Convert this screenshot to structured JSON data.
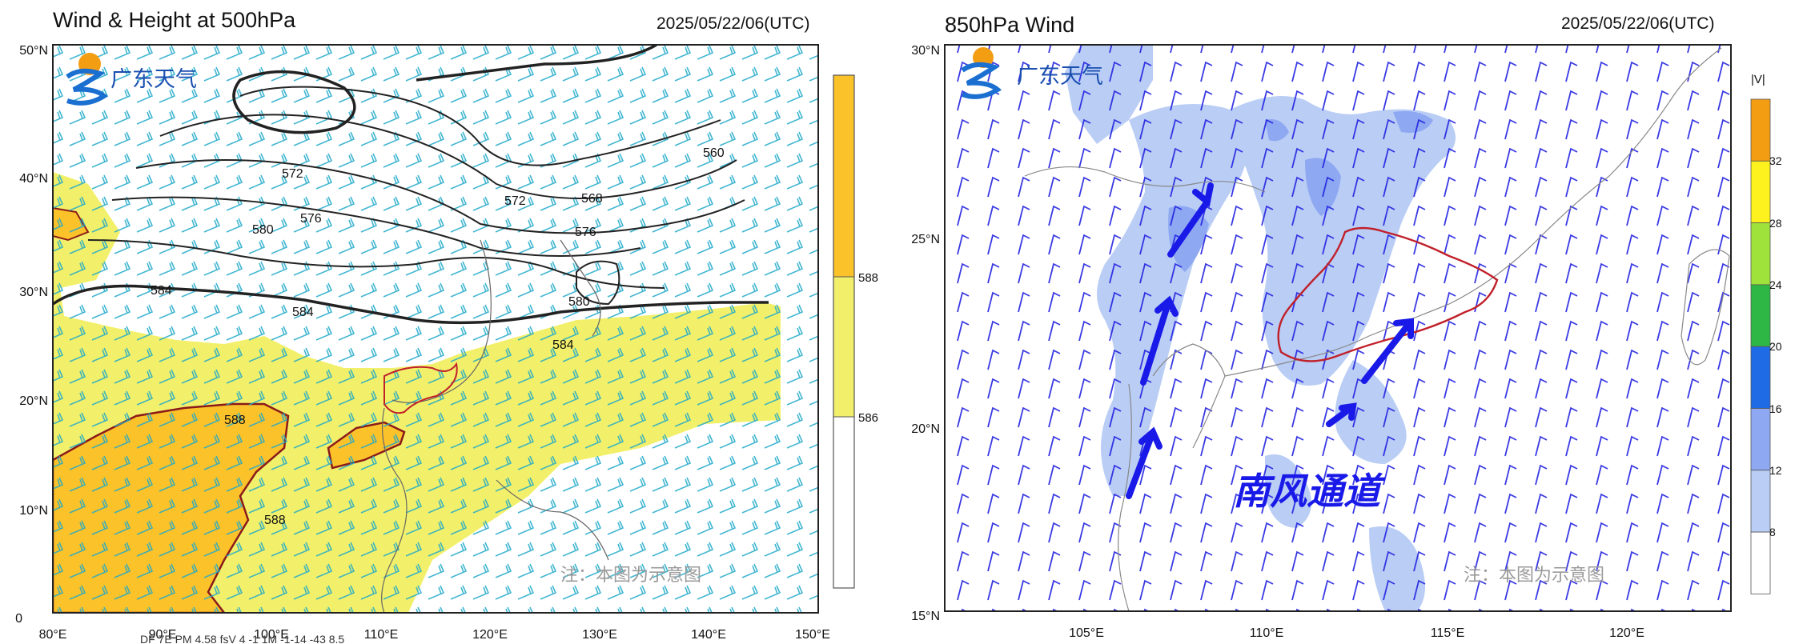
{
  "logo_text": "广东天气",
  "colors": {
    "wind_barb_500": "#1fa9c9",
    "wind_barb_850": "#2323e0",
    "shade_586_588": "#f2f06a",
    "shade_588_plus": "#fbc22a",
    "speed_8_12": "#b9cdf5",
    "speed_12_16": "#8ea8f2",
    "boundary": "#c0202a",
    "annotation_arrow": "#1a1ae8"
  },
  "left": {
    "title": "Wind & Height at 500hPa",
    "datetime": "2025/05/22/06(UTC)",
    "y_ticks": [
      "50°N",
      "40°N",
      "30°N",
      "20°N",
      "10°N",
      "0"
    ],
    "x_ticks": [
      "80°E",
      "90°E",
      "100°E",
      "110°E",
      "120°E",
      "130°E",
      "140°E",
      "150°E"
    ],
    "contour_labels": [
      "572",
      "576",
      "580",
      "584",
      "584",
      "572",
      "568",
      "576",
      "560",
      "580",
      "584",
      "588",
      "588"
    ],
    "colorbar_labels": [
      "588",
      "586"
    ],
    "note": "注：本图为示意图",
    "bottom_overlay": "DF 7E PM 4.58 fsV 4  -1 1M  -1-14   -43 8.5",
    "legend_levels": [
      586,
      588
    ]
  },
  "right": {
    "title": "850hPa Wind",
    "datetime": "2025/05/22/06(UTC)",
    "y_ticks": [
      "30°N",
      "25°N",
      "20°N",
      "15°N"
    ],
    "x_ticks": [
      "105°E",
      "110°E",
      "115°E",
      "120°E"
    ],
    "colorbar_title": "|V|",
    "colorbar_labels": [
      "32",
      "28",
      "24",
      "20",
      "16",
      "12",
      "8"
    ],
    "annotation": "南风通道",
    "note": "注：本图为示意图",
    "colorbar_colors": [
      "#f39d13",
      "#fdf21d",
      "#9fe23c",
      "#2fb745",
      "#1f6be5",
      "#8ea8f2",
      "#b9cdf5",
      "#ffffff"
    ]
  }
}
